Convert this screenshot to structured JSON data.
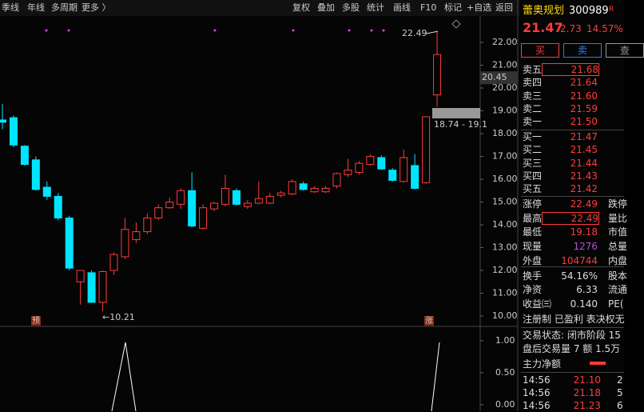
{
  "toolbar": {
    "left": [
      "季线",
      "年线",
      "多周期",
      "更多 〉"
    ],
    "right": [
      "复权",
      "叠加",
      "多股",
      "统计",
      "画线",
      "F10",
      "标记",
      "+自选",
      "返回"
    ]
  },
  "chart_data": {
    "type": "candlestick",
    "open": [
      18.6,
      18.7,
      17.45,
      16.85,
      15.65,
      15.25,
      14.3,
      11.5,
      11.9,
      10.6,
      12.0,
      12.6,
      13.35,
      13.7,
      14.3,
      14.75,
      14.9,
      15.5,
      13.85,
      14.7,
      14.9,
      15.5,
      14.8,
      14.95,
      14.95,
      15.3,
      15.35,
      15.8,
      15.45,
      15.45,
      15.7,
      16.2,
      16.3,
      16.65,
      16.95,
      16.4,
      15.9,
      16.6,
      15.85,
      19.7
    ],
    "high": [
      19.3,
      18.8,
      17.5,
      17.0,
      15.9,
      15.4,
      14.4,
      12.0,
      12.0,
      12.0,
      12.8,
      14.3,
      14.1,
      14.5,
      14.9,
      15.2,
      15.6,
      16.3,
      14.9,
      15.0,
      16.2,
      15.6,
      15.1,
      15.9,
      15.4,
      15.5,
      16.0,
      15.9,
      15.7,
      15.7,
      16.3,
      16.9,
      16.8,
      17.1,
      17.05,
      16.5,
      17.3,
      17.1,
      18.74,
      22.49
    ],
    "low": [
      18.2,
      17.4,
      16.6,
      15.5,
      15.1,
      14.2,
      12.0,
      10.5,
      10.6,
      10.21,
      11.8,
      12.5,
      13.2,
      13.6,
      14.2,
      14.7,
      14.7,
      13.9,
      13.8,
      14.6,
      14.8,
      14.85,
      14.7,
      14.9,
      14.9,
      15.2,
      15.3,
      15.5,
      15.4,
      15.4,
      15.6,
      16.1,
      16.2,
      16.6,
      16.4,
      15.9,
      15.85,
      15.55,
      15.8,
      19.18
    ],
    "close": [
      18.5,
      17.5,
      16.65,
      15.55,
      15.25,
      14.3,
      12.1,
      12.0,
      10.6,
      11.95,
      12.7,
      13.8,
      13.7,
      14.3,
      14.75,
      15.0,
      15.5,
      13.95,
      14.75,
      14.95,
      15.6,
      14.9,
      14.95,
      15.15,
      15.25,
      15.4,
      15.9,
      15.55,
      15.6,
      15.6,
      16.25,
      16.4,
      16.7,
      17.0,
      16.45,
      15.95,
      16.95,
      15.6,
      18.74,
      21.47
    ],
    "up_color": "#ff3b3b",
    "down_color": "#00e5ff",
    "ylim": [
      9.58,
      23.09
    ],
    "yticks": [
      {
        "value": 22,
        "label": "22.00"
      },
      {
        "value": 21,
        "label": "21.00"
      },
      {
        "value": 20,
        "label": "20.00"
      },
      {
        "value": 19,
        "label": "19.00"
      },
      {
        "value": 18,
        "label": "18.00"
      },
      {
        "value": 17,
        "label": "17.00"
      },
      {
        "value": 16,
        "label": "16.00"
      },
      {
        "value": 15,
        "label": "15.00"
      },
      {
        "value": 14,
        "label": "14.00"
      },
      {
        "value": 13,
        "label": "13.00"
      },
      {
        "value": 12,
        "label": "12.00"
      },
      {
        "value": 11,
        "label": "11.00"
      },
      {
        "value": 10,
        "label": "10.00"
      }
    ],
    "high_label": "22.49",
    "low_label": "←10.21",
    "price_tag": "20.45",
    "range_tag": "18.74 - 19.1",
    "markers": [
      "预",
      "涨"
    ]
  },
  "indicator": {
    "ylim": [
      -0.07,
      1.08
    ],
    "yticks": [
      {
        "value": 1,
        "label": "1.00"
      },
      {
        "value": 0.5,
        "label": "0.50"
      },
      {
        "value": 0,
        "label": "0.00"
      }
    ]
  },
  "quote": {
    "name": "蕾奥规划",
    "code": "300989",
    "flag": "R",
    "price": "21.47",
    "change": "2.73",
    "pct": "14.57%",
    "buttons": [
      "买",
      "卖",
      "查"
    ],
    "asks": [
      [
        "卖五",
        "21.68"
      ],
      [
        "卖四",
        "21.64"
      ],
      [
        "卖三",
        "21.60"
      ],
      [
        "卖二",
        "21.59"
      ],
      [
        "卖一",
        "21.50"
      ]
    ],
    "bids": [
      [
        "买一",
        "21.47"
      ],
      [
        "买二",
        "21.45"
      ],
      [
        "买三",
        "21.44"
      ],
      [
        "买四",
        "21.43"
      ],
      [
        "买五",
        "21.42"
      ]
    ],
    "stats": [
      [
        "涨停",
        "22.49",
        "跌停"
      ],
      [
        "最高",
        "22.49",
        "量比"
      ],
      [
        "最低",
        "19.18",
        "市值"
      ],
      [
        "现量",
        "1276",
        "总量"
      ],
      [
        "外盘",
        "104744",
        "内盘"
      ],
      [
        "换手",
        "54.16%",
        "股本"
      ],
      [
        "净资",
        "6.33",
        "流通"
      ],
      [
        "收益㈢",
        "0.140",
        "PE("
      ]
    ],
    "tags": "注册制  已盈利  表决权无",
    "status": "交易状态: 闭市阶段 15",
    "after": "盘后交易量 7 额 1.5万",
    "flow": "主力净额",
    "ticks": [
      [
        "14:56",
        "21.10",
        "2"
      ],
      [
        "14:56",
        "21.18",
        "5"
      ],
      [
        "14:56",
        "21.23",
        "6"
      ]
    ]
  }
}
